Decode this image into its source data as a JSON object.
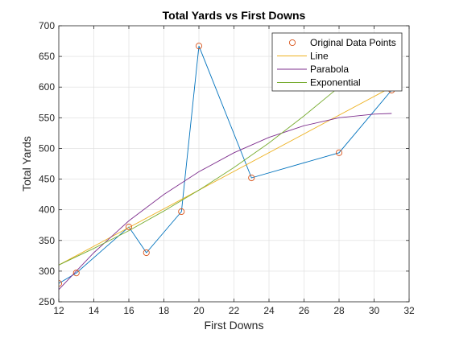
{
  "chart_data": {
    "type": "line",
    "title": "Total Yards vs First Downs",
    "xlabel": "First Downs",
    "ylabel": "Total Yards",
    "xlim": [
      12,
      32
    ],
    "ylim": [
      250,
      700
    ],
    "xticks": [
      12,
      14,
      16,
      18,
      20,
      22,
      24,
      26,
      28,
      30,
      32
    ],
    "yticks": [
      250,
      300,
      350,
      400,
      450,
      500,
      550,
      600,
      650,
      700
    ],
    "x_tick_labels": [
      "12",
      "14",
      "16",
      "18",
      "20",
      "22",
      "24",
      "26",
      "28",
      "30",
      "32"
    ],
    "y_tick_labels": [
      "250",
      "300",
      "350",
      "400",
      "450",
      "500",
      "550",
      "600",
      "650",
      "700"
    ],
    "grid": true,
    "legend_position": "top-right",
    "series": [
      {
        "name": "Original Data Points",
        "style": "markers",
        "color": "#D95319",
        "connector_color": "#0072BD",
        "x": [
          12,
          13,
          16,
          17,
          19,
          20,
          23,
          28,
          31
        ],
        "y": [
          280,
          297,
          372,
          330,
          397,
          667,
          452,
          493,
          595
        ]
      },
      {
        "name": "Line",
        "style": "line",
        "color": "#EDB120",
        "x": [
          12,
          31
        ],
        "y": [
          310,
          600
        ]
      },
      {
        "name": "Parabola",
        "style": "line",
        "color": "#7E2F8E",
        "x": [
          12,
          14,
          16,
          18,
          20,
          22,
          24,
          26,
          28,
          30,
          31
        ],
        "y": [
          270,
          330,
          382,
          425,
          462,
          493,
          518,
          537,
          550,
          556,
          557
        ]
      },
      {
        "name": "Exponential",
        "style": "line",
        "color": "#77AC30",
        "x": [
          12,
          14,
          16,
          18,
          20,
          22,
          24,
          26,
          28,
          30,
          31
        ],
        "y": [
          310,
          337,
          366,
          398,
          432,
          469,
          509,
          553,
          600,
          651,
          678
        ]
      }
    ]
  }
}
